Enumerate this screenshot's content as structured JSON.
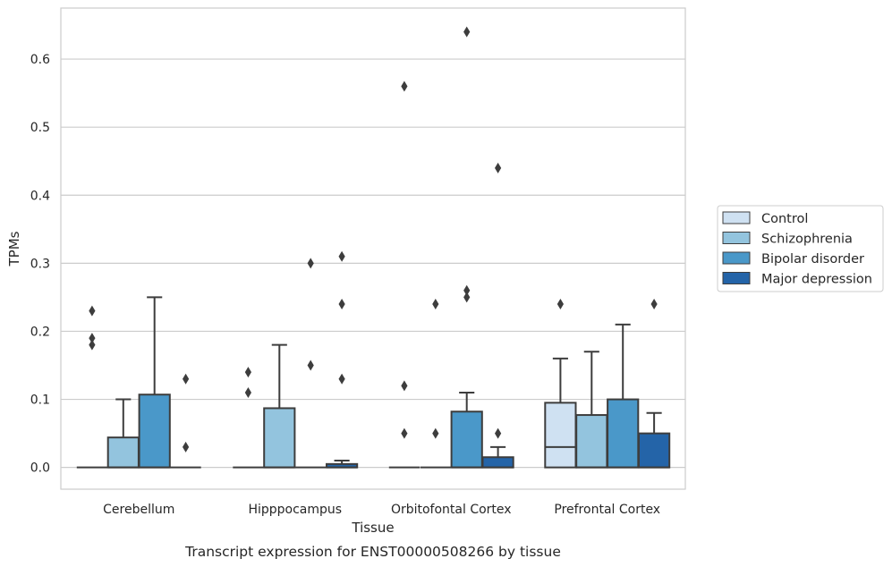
{
  "chart_data": {
    "type": "box",
    "title": "",
    "caption": "Transcript expression for ENST00000508266 by tissue",
    "xlabel": "Tissue",
    "ylabel": "TPMs",
    "ylim": [
      -0.032,
      0.675
    ],
    "yticks": [
      0.0,
      0.1,
      0.2,
      0.3,
      0.4,
      0.5,
      0.6
    ],
    "ytick_labels": [
      "0.0",
      "0.1",
      "0.2",
      "0.3",
      "0.4",
      "0.5",
      "0.6"
    ],
    "grid": "horizontal",
    "legend_position": "right",
    "categories": [
      "Cerebellum",
      "Hipppocampus",
      "Orbitofontal Cortex",
      "Prefrontal Cortex"
    ],
    "series": [
      {
        "name": "Control",
        "color": "#cfe1f2",
        "boxes": [
          {
            "q1": 0.0,
            "median": 0.0,
            "q3": 0.0,
            "whisker_low": 0.0,
            "whisker_high": 0.0,
            "outliers": [
              0.23,
              0.19,
              0.18
            ]
          },
          {
            "q1": 0.0,
            "median": 0.0,
            "q3": 0.0,
            "whisker_low": 0.0,
            "whisker_high": 0.0,
            "outliers": [
              0.14,
              0.11
            ]
          },
          {
            "q1": 0.0,
            "median": 0.0,
            "q3": 0.0,
            "whisker_low": 0.0,
            "whisker_high": 0.0,
            "outliers": [
              0.56,
              0.12,
              0.05
            ]
          },
          {
            "q1": 0.0,
            "median": 0.03,
            "q3": 0.095,
            "whisker_low": 0.0,
            "whisker_high": 0.16,
            "outliers": [
              0.24
            ]
          }
        ]
      },
      {
        "name": "Schizophrenia",
        "color": "#93c4de",
        "boxes": [
          {
            "q1": 0.0,
            "median": 0.0,
            "q3": 0.044,
            "whisker_low": 0.0,
            "whisker_high": 0.1,
            "outliers": []
          },
          {
            "q1": 0.0,
            "median": 0.0,
            "q3": 0.087,
            "whisker_low": 0.0,
            "whisker_high": 0.18,
            "outliers": []
          },
          {
            "q1": 0.0,
            "median": 0.0,
            "q3": 0.0,
            "whisker_low": 0.0,
            "whisker_high": 0.0,
            "outliers": [
              0.24,
              0.05
            ]
          },
          {
            "q1": 0.0,
            "median": 0.0,
            "q3": 0.077,
            "whisker_low": 0.0,
            "whisker_high": 0.17,
            "outliers": []
          }
        ]
      },
      {
        "name": "Bipolar disorder",
        "color": "#4a98c9",
        "boxes": [
          {
            "q1": 0.0,
            "median": 0.0,
            "q3": 0.107,
            "whisker_low": 0.0,
            "whisker_high": 0.25,
            "outliers": []
          },
          {
            "q1": 0.0,
            "median": 0.0,
            "q3": 0.0,
            "whisker_low": 0.0,
            "whisker_high": 0.0,
            "outliers": [
              0.3,
              0.15
            ]
          },
          {
            "q1": 0.0,
            "median": 0.0,
            "q3": 0.082,
            "whisker_low": 0.0,
            "whisker_high": 0.11,
            "outliers": [
              0.64,
              0.26,
              0.25
            ]
          },
          {
            "q1": 0.0,
            "median": 0.0,
            "q3": 0.1,
            "whisker_low": 0.0,
            "whisker_high": 0.21,
            "outliers": []
          }
        ]
      },
      {
        "name": "Major depression",
        "color": "#2464a8",
        "boxes": [
          {
            "q1": 0.0,
            "median": 0.0,
            "q3": 0.0,
            "whisker_low": 0.0,
            "whisker_high": 0.0,
            "outliers": [
              0.13,
              0.03
            ]
          },
          {
            "q1": 0.0,
            "median": 0.0,
            "q3": 0.005,
            "whisker_low": 0.0,
            "whisker_high": 0.01,
            "outliers": [
              0.31,
              0.24,
              0.13
            ]
          },
          {
            "q1": 0.0,
            "median": 0.0,
            "q3": 0.015,
            "whisker_low": 0.0,
            "whisker_high": 0.03,
            "outliers": [
              0.44,
              0.05
            ]
          },
          {
            "q1": 0.0,
            "median": 0.0,
            "q3": 0.05,
            "whisker_low": 0.0,
            "whisker_high": 0.08,
            "outliers": [
              0.24
            ]
          }
        ]
      }
    ]
  }
}
